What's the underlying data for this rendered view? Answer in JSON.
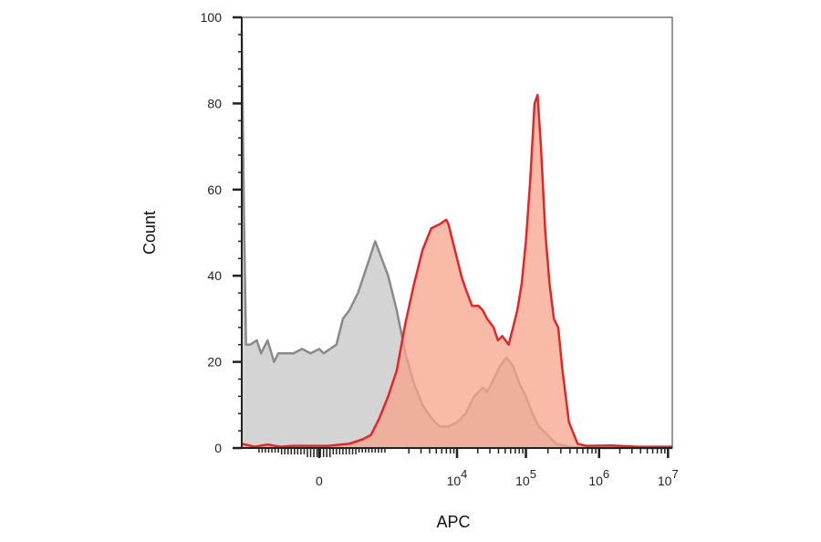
{
  "chart_data": {
    "type": "area",
    "xlabel": "APC",
    "ylabel": "Count",
    "ylim": [
      0,
      100
    ],
    "y_ticks": [
      {
        "value": 0,
        "label": "0"
      },
      {
        "value": 20,
        "label": "20"
      },
      {
        "value": 40,
        "label": "40"
      },
      {
        "value": 60,
        "label": "60"
      },
      {
        "value": 80,
        "label": "80"
      },
      {
        "value": 100,
        "label": "100"
      }
    ],
    "x_scale": "biexponential",
    "x_ticks": [
      {
        "label": "0",
        "exp": ""
      },
      {
        "label": "10",
        "exp": "4"
      },
      {
        "label": "10",
        "exp": "5"
      },
      {
        "label": "10",
        "exp": "6"
      },
      {
        "label": "10",
        "exp": "7"
      }
    ],
    "x_tick_positions": [
      0.18,
      0.5,
      0.66,
      0.83,
      0.99
    ],
    "grid": false,
    "legend": "none",
    "series": [
      {
        "color_fill": "#d4d4d4",
        "color_line": "#8a8a8a",
        "points": [
          [
            0.0,
            97
          ],
          [
            0.005,
            55
          ],
          [
            0.01,
            24
          ],
          [
            0.02,
            24
          ],
          [
            0.035,
            25
          ],
          [
            0.045,
            22
          ],
          [
            0.06,
            25
          ],
          [
            0.075,
            20
          ],
          [
            0.085,
            22
          ],
          [
            0.1,
            22
          ],
          [
            0.12,
            22
          ],
          [
            0.14,
            23
          ],
          [
            0.16,
            22
          ],
          [
            0.18,
            23
          ],
          [
            0.19,
            22
          ],
          [
            0.22,
            24
          ],
          [
            0.235,
            30
          ],
          [
            0.25,
            32
          ],
          [
            0.27,
            36
          ],
          [
            0.29,
            42
          ],
          [
            0.3,
            45
          ],
          [
            0.31,
            48
          ],
          [
            0.325,
            44
          ],
          [
            0.34,
            40
          ],
          [
            0.36,
            32
          ],
          [
            0.38,
            22
          ],
          [
            0.4,
            15
          ],
          [
            0.42,
            10
          ],
          [
            0.44,
            7
          ],
          [
            0.46,
            5
          ],
          [
            0.48,
            5
          ],
          [
            0.5,
            6
          ],
          [
            0.52,
            8
          ],
          [
            0.54,
            12
          ],
          [
            0.56,
            14
          ],
          [
            0.57,
            13
          ],
          [
            0.59,
            17
          ],
          [
            0.6,
            19
          ],
          [
            0.615,
            21
          ],
          [
            0.63,
            19
          ],
          [
            0.645,
            15
          ],
          [
            0.66,
            12
          ],
          [
            0.675,
            8
          ],
          [
            0.69,
            5
          ],
          [
            0.71,
            3
          ],
          [
            0.73,
            1
          ],
          [
            0.76,
            0.3
          ],
          [
            0.8,
            0
          ],
          [
            1.0,
            0
          ]
        ]
      },
      {
        "color_fill": "#f7a48a",
        "color_line": "#e2262a",
        "points": [
          [
            0.0,
            1
          ],
          [
            0.03,
            0.3
          ],
          [
            0.06,
            0.8
          ],
          [
            0.09,
            0.3
          ],
          [
            0.12,
            0.5
          ],
          [
            0.15,
            0.5
          ],
          [
            0.2,
            0.5
          ],
          [
            0.25,
            1
          ],
          [
            0.28,
            2
          ],
          [
            0.3,
            3
          ],
          [
            0.32,
            7
          ],
          [
            0.34,
            12
          ],
          [
            0.36,
            18
          ],
          [
            0.38,
            29
          ],
          [
            0.4,
            38
          ],
          [
            0.42,
            46
          ],
          [
            0.44,
            51
          ],
          [
            0.46,
            52
          ],
          [
            0.475,
            53
          ],
          [
            0.48,
            52
          ],
          [
            0.49,
            48
          ],
          [
            0.5,
            44
          ],
          [
            0.51,
            40
          ],
          [
            0.52,
            37
          ],
          [
            0.535,
            33
          ],
          [
            0.55,
            33
          ],
          [
            0.56,
            32
          ],
          [
            0.57,
            30
          ],
          [
            0.585,
            28
          ],
          [
            0.595,
            25
          ],
          [
            0.605,
            26
          ],
          [
            0.62,
            24
          ],
          [
            0.63,
            28
          ],
          [
            0.64,
            32
          ],
          [
            0.65,
            38
          ],
          [
            0.66,
            48
          ],
          [
            0.67,
            62
          ],
          [
            0.68,
            80
          ],
          [
            0.687,
            82
          ],
          [
            0.695,
            70
          ],
          [
            0.705,
            50
          ],
          [
            0.715,
            38
          ],
          [
            0.725,
            30
          ],
          [
            0.735,
            28
          ],
          [
            0.745,
            18
          ],
          [
            0.76,
            6
          ],
          [
            0.78,
            1
          ],
          [
            0.8,
            0.5
          ],
          [
            0.86,
            0.6
          ],
          [
            0.92,
            0.3
          ],
          [
            1.0,
            0.3
          ]
        ]
      }
    ]
  }
}
